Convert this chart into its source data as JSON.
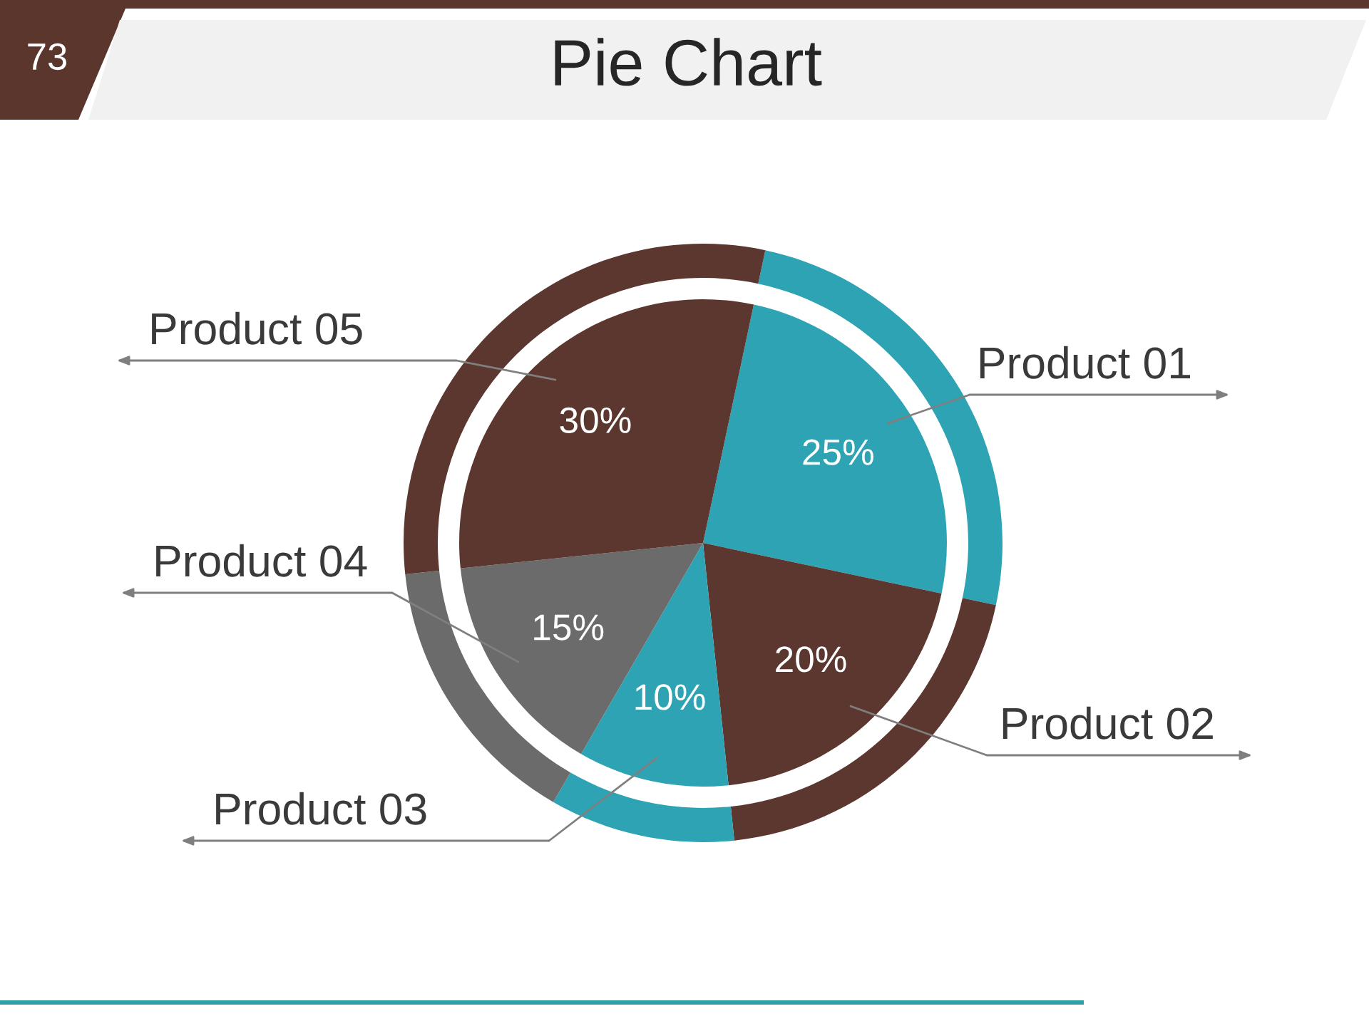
{
  "chart_data": {
    "type": "pie",
    "title": "Pie Chart",
    "categories": [
      "Product 01",
      "Product 02",
      "Product 03",
      "Product 04",
      "Product 05"
    ],
    "colors": [
      "#2ea3b3",
      "#5b372f",
      "#2ea3b3",
      "#6b6b6b",
      "#5b372f"
    ],
    "series": [
      {
        "values": [
          25,
          20,
          10,
          15,
          30
        ],
        "value_labels": [
          "25%",
          "20%",
          "10%",
          "15%",
          "30%"
        ]
      },
      {
        "type": "donut",
        "values": [
          25,
          20,
          10,
          15,
          30
        ]
      }
    ],
    "annotations": [
      "73"
    ]
  }
}
